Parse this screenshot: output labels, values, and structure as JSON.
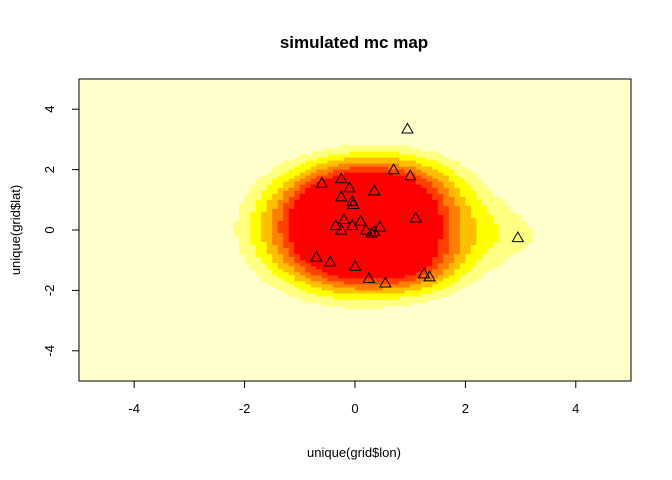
{
  "chart_data": {
    "type": "heatmap",
    "title": "simulated mc map",
    "xlabel": "unique(grid$lon)",
    "ylabel": "unique(grid$lat)",
    "xlim": [
      -5,
      5
    ],
    "ylim": [
      -5,
      5
    ],
    "x_ticks": [
      -4,
      -2,
      0,
      2,
      4
    ],
    "y_ticks": [
      -4,
      -2,
      0,
      2,
      4
    ],
    "grid": false,
    "legend": "none",
    "palette": [
      "#FF0000",
      "#FF4000",
      "#FF8000",
      "#FFBF00",
      "#FFFF00",
      "#FFFF80"
    ],
    "background_color": "#FFFFCC",
    "heat_surface": {
      "max_level": 0.0009,
      "level_step": 0.0001,
      "bumps": [
        {
          "x": 0.35,
          "y": 0.05,
          "amp": 0.00085,
          "sx": 1.05,
          "sy": 1.05
        },
        {
          "x": -0.2,
          "y": 1.2,
          "amp": 0.00035,
          "sx": 0.9,
          "sy": 0.9
        },
        {
          "x": 0.8,
          "y": 1.6,
          "amp": 0.00025,
          "sx": 0.9,
          "sy": 0.8
        },
        {
          "x": 0.0,
          "y": -1.3,
          "amp": 0.0003,
          "sx": 0.9,
          "sy": 0.8
        },
        {
          "x": 1.2,
          "y": -1.3,
          "amp": 0.00018,
          "sx": 0.6,
          "sy": 0.6
        },
        {
          "x": -0.8,
          "y": -0.2,
          "amp": 0.00018,
          "sx": 0.8,
          "sy": 1.0
        },
        {
          "x": 3.0,
          "y": -0.2,
          "amp": 0.00012,
          "sx": 0.8,
          "sy": 0.8
        },
        {
          "x": 0.3,
          "y": 0.0,
          "amp": 0.0003,
          "sx": 2.6,
          "sy": 2.4
        }
      ]
    },
    "points": [
      {
        "x": 0.95,
        "y": 3.35
      },
      {
        "x": 0.7,
        "y": 2.0
      },
      {
        "x": 1.0,
        "y": 1.8
      },
      {
        "x": -0.6,
        "y": 1.55
      },
      {
        "x": -0.25,
        "y": 1.7
      },
      {
        "x": -0.1,
        "y": 1.4
      },
      {
        "x": 0.35,
        "y": 1.3
      },
      {
        "x": -0.25,
        "y": 1.1
      },
      {
        "x": -0.05,
        "y": 0.95
      },
      {
        "x": -0.03,
        "y": 0.85
      },
      {
        "x": 1.1,
        "y": 0.4
      },
      {
        "x": -0.2,
        "y": 0.35
      },
      {
        "x": 0.1,
        "y": 0.3
      },
      {
        "x": -0.35,
        "y": 0.15
      },
      {
        "x": -0.05,
        "y": 0.15
      },
      {
        "x": 0.45,
        "y": 0.1
      },
      {
        "x": 0.2,
        "y": 0.0
      },
      {
        "x": -0.25,
        "y": 0.0
      },
      {
        "x": 0.35,
        "y": -0.05
      },
      {
        "x": 0.3,
        "y": -0.1
      },
      {
        "x": 2.95,
        "y": -0.25
      },
      {
        "x": -0.7,
        "y": -0.9
      },
      {
        "x": -0.45,
        "y": -1.05
      },
      {
        "x": 0.0,
        "y": -1.2
      },
      {
        "x": 1.25,
        "y": -1.45
      },
      {
        "x": 1.35,
        "y": -1.55
      },
      {
        "x": 0.25,
        "y": -1.6
      },
      {
        "x": 0.55,
        "y": -1.75
      }
    ],
    "point_shape": "triangle-open"
  }
}
